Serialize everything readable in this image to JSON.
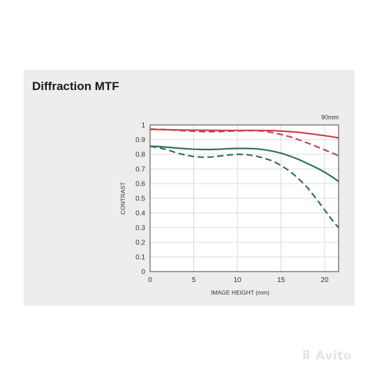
{
  "title": "Diffraction MTF",
  "watermark": "Avito",
  "chart_data": {
    "type": "line",
    "annotation": "90mm",
    "xlabel": "IMAGE HEIGHT (mm)",
    "ylabel": "CONTRAST",
    "xlim": [
      0,
      21.6
    ],
    "ylim": [
      0,
      1
    ],
    "xticks": [
      0,
      5,
      10,
      15,
      20
    ],
    "yticks": [
      0,
      0.1,
      0.2,
      0.3,
      0.4,
      0.5,
      0.6,
      0.7,
      0.8,
      0.9,
      1
    ],
    "ytick_labels": [
      "0",
      "0.1",
      "0.2",
      "0.3",
      "0.4",
      "0.5",
      "0.6",
      "0.7",
      "0.8",
      "0.9",
      "1"
    ],
    "grid": true,
    "series": [
      {
        "style": "solid",
        "color": "#c8404a",
        "x": [
          0,
          2,
          4,
          6,
          8,
          10,
          12,
          14,
          16,
          17,
          18,
          19,
          20,
          21,
          21.6
        ],
        "y": [
          0.97,
          0.967,
          0.965,
          0.964,
          0.963,
          0.963,
          0.963,
          0.962,
          0.955,
          0.95,
          0.943,
          0.935,
          0.927,
          0.918,
          0.912
        ]
      },
      {
        "style": "dashed",
        "color": "#c8404a",
        "x": [
          0,
          2,
          4,
          6,
          8,
          10,
          12,
          13,
          14,
          15,
          16,
          17,
          18,
          19,
          20,
          21,
          21.6
        ],
        "y": [
          0.972,
          0.968,
          0.96,
          0.955,
          0.955,
          0.96,
          0.962,
          0.958,
          0.948,
          0.935,
          0.92,
          0.9,
          0.878,
          0.855,
          0.83,
          0.805,
          0.79
        ]
      },
      {
        "style": "solid",
        "color": "#2f7350",
        "x": [
          0,
          1,
          2,
          3,
          4,
          5,
          6,
          7,
          8,
          9,
          10,
          11,
          12,
          13,
          14,
          15,
          16,
          17,
          18,
          19,
          20,
          21,
          21.6
        ],
        "y": [
          0.855,
          0.853,
          0.848,
          0.843,
          0.838,
          0.835,
          0.833,
          0.833,
          0.835,
          0.838,
          0.84,
          0.84,
          0.838,
          0.832,
          0.822,
          0.808,
          0.788,
          0.765,
          0.738,
          0.71,
          0.678,
          0.64,
          0.615
        ]
      },
      {
        "style": "dashed",
        "color": "#2f7350",
        "x": [
          0,
          1,
          2,
          3,
          4,
          5,
          6,
          7,
          8,
          9,
          10,
          11,
          12,
          13,
          14,
          15,
          16,
          17,
          18,
          19,
          20,
          21,
          21.6
        ],
        "y": [
          0.855,
          0.845,
          0.83,
          0.81,
          0.795,
          0.785,
          0.78,
          0.782,
          0.788,
          0.795,
          0.8,
          0.798,
          0.79,
          0.775,
          0.755,
          0.725,
          0.685,
          0.635,
          0.575,
          0.5,
          0.42,
          0.34,
          0.3
        ]
      }
    ]
  }
}
